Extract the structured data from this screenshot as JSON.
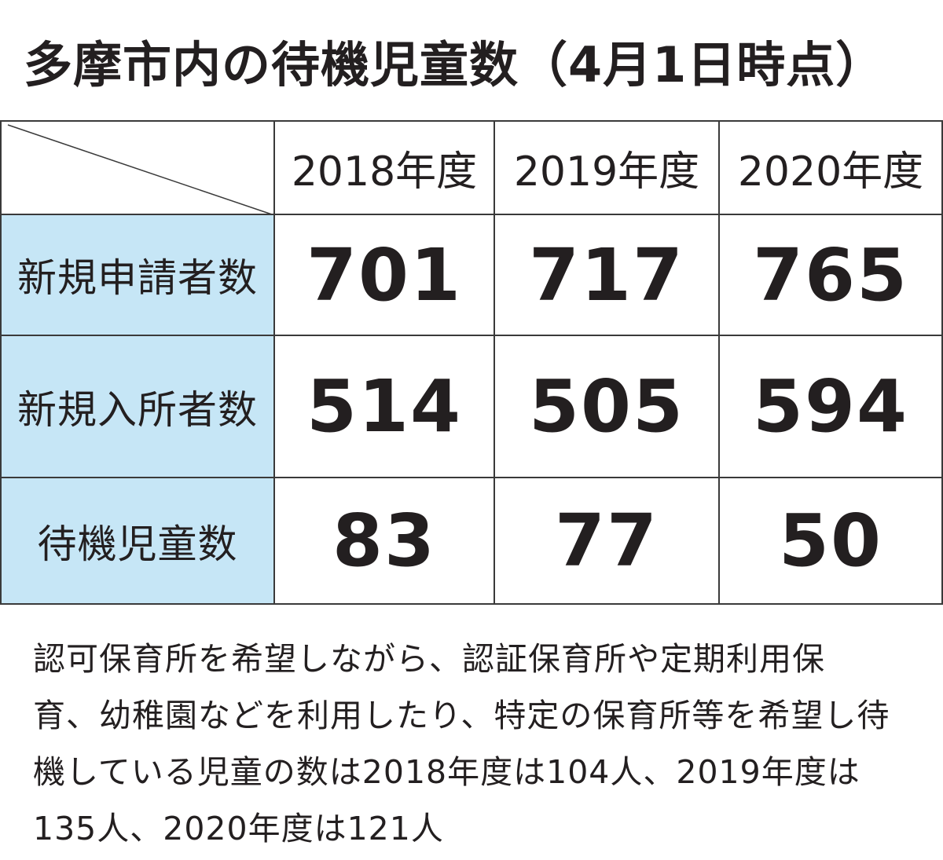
{
  "title": "多摩市内の待機児童数（4月1日時点）",
  "chart_data": {
    "type": "table",
    "title": "多摩市内の待機児童数（4月1日時点）",
    "columns": [
      "2018年度",
      "2019年度",
      "2020年度"
    ],
    "rows": [
      {
        "label": "新規申請者数",
        "values": [
          "701",
          "717",
          "765"
        ]
      },
      {
        "label": "新規入所者数",
        "values": [
          "514",
          "505",
          "594"
        ]
      },
      {
        "label": "待機児童数",
        "values": [
          "83",
          "77",
          "50"
        ]
      }
    ]
  },
  "colors": {
    "row_header_bg": "#c6e6f6",
    "border": "#3a3a3a",
    "text": "#231f20"
  },
  "note": {
    "lines": [
      "認可保育所を希望しながら、認証保育所や定期利用保",
      "育、幼稚園などを利用したり、特定の保育所等を希望し待",
      "機している児童の数は2018年度は104人、2019年度は",
      "135人、2020年度は121人"
    ]
  }
}
